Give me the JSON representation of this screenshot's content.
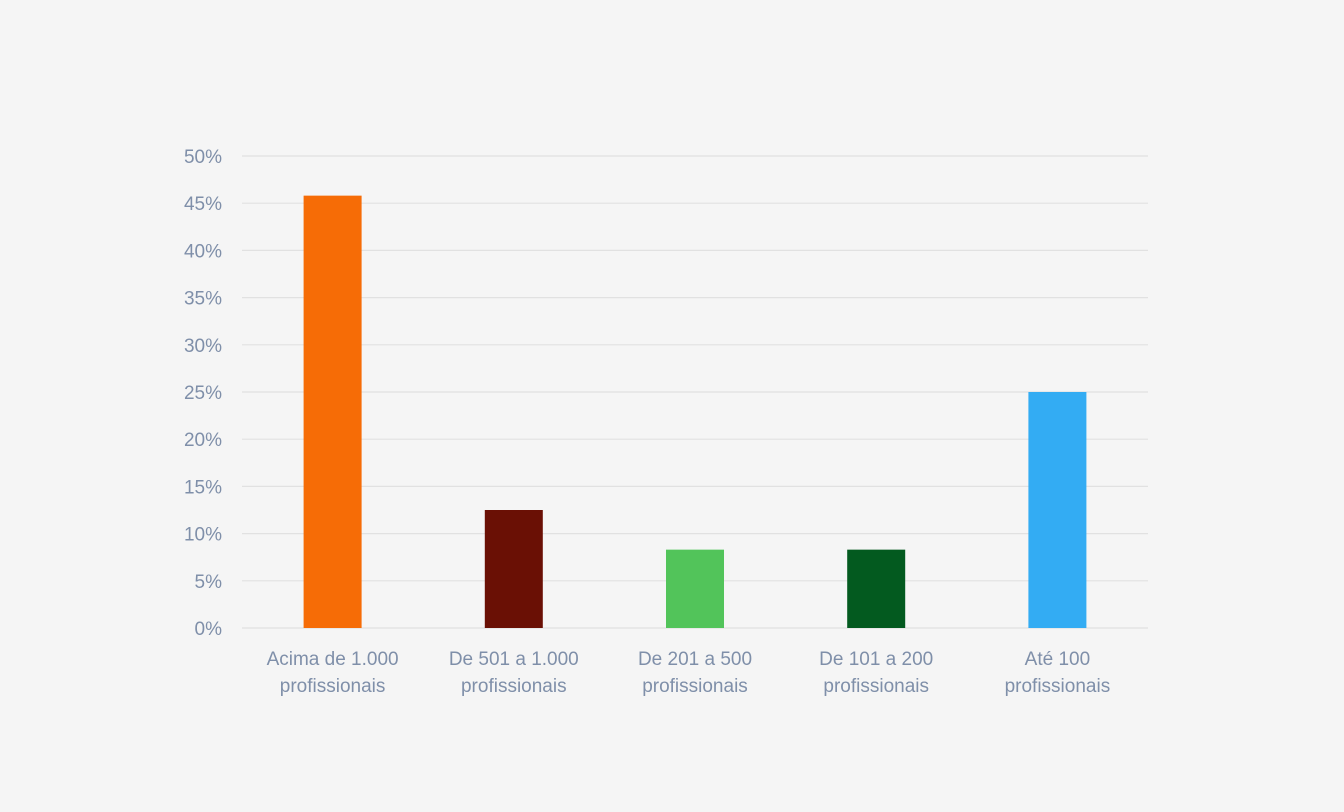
{
  "chart_data": {
    "type": "bar",
    "categories": [
      [
        "Acima de 1.000",
        "profissionais"
      ],
      [
        "De 501 a 1.000",
        "profissionais"
      ],
      [
        "De 201 a 500",
        "profissionais"
      ],
      [
        "De 101 a 200",
        "profissionais"
      ],
      [
        "Até 100",
        "profissionais"
      ]
    ],
    "values": [
      45.8,
      12.5,
      8.3,
      8.3,
      25.0
    ],
    "colors": [
      "#f66c06",
      "#6a1005",
      "#52c45a",
      "#035a1f",
      "#33acf3"
    ],
    "ylim": [
      0,
      50
    ],
    "yticks": [
      0,
      5,
      10,
      15,
      20,
      25,
      30,
      35,
      40,
      45,
      50
    ],
    "ytick_format": "percent",
    "grid": true,
    "title": "",
    "xlabel": "",
    "ylabel": ""
  }
}
